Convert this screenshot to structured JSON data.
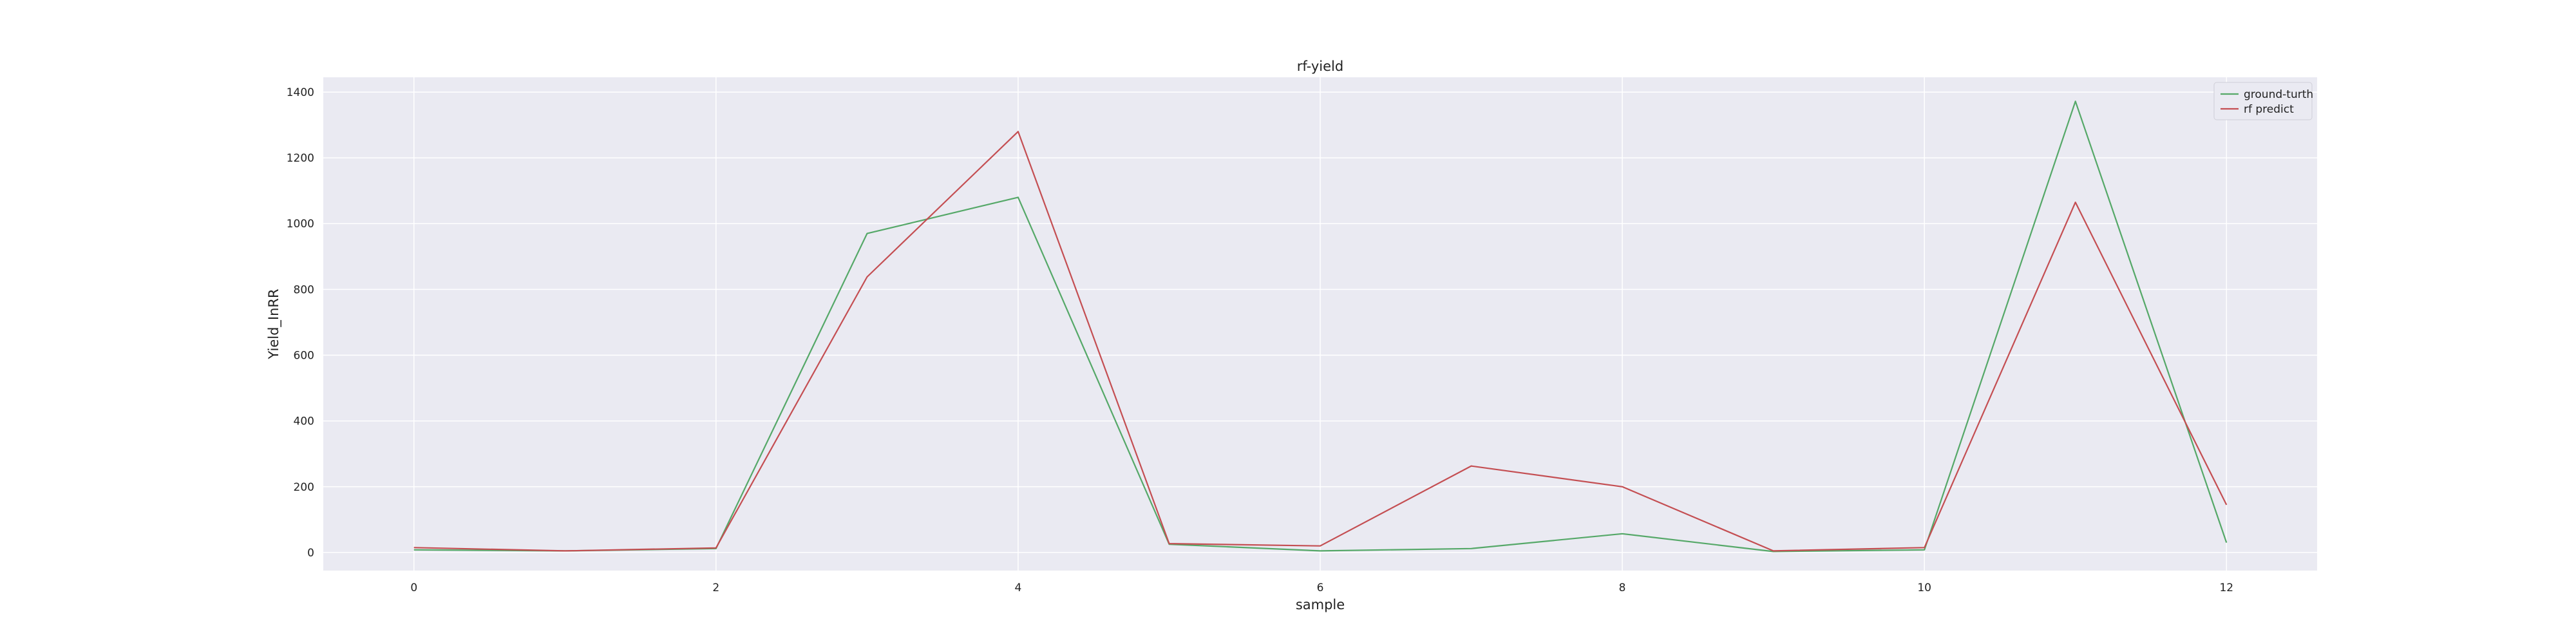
{
  "chart_data": {
    "type": "line",
    "title": "rf-yield",
    "xlabel": "sample",
    "ylabel": "Yield_InRR",
    "x": [
      0,
      1,
      2,
      3,
      4,
      5,
      6,
      7,
      8,
      9,
      10,
      11,
      12
    ],
    "xlim": [
      -0.6,
      12.6
    ],
    "ylim": [
      -55,
      1445
    ],
    "xticks": [
      0,
      2,
      4,
      6,
      8,
      10,
      12
    ],
    "yticks": [
      0,
      200,
      400,
      600,
      800,
      1000,
      1200,
      1400
    ],
    "grid": true,
    "legend_position": "top-right",
    "background": "#eaeaf2",
    "series": [
      {
        "name": "ground-turth",
        "color": "#55a868",
        "values": [
          8,
          5,
          12,
          970,
          1080,
          25,
          5,
          12,
          57,
          3,
          8,
          1372,
          30
        ]
      },
      {
        "name": "rf predict",
        "color": "#c44e52",
        "values": [
          15,
          5,
          14,
          838,
          1280,
          27,
          20,
          263,
          200,
          5,
          15,
          1065,
          145
        ]
      }
    ]
  }
}
